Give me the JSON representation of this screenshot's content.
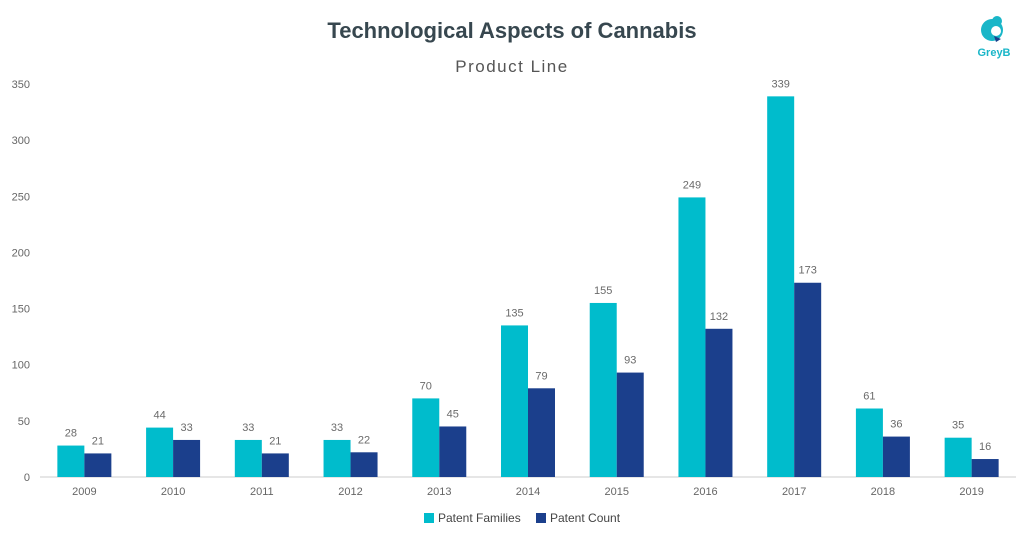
{
  "header": {
    "title": "Technological Aspects of Cannabis",
    "subtitle": "Product Line",
    "logo_text": "GreyB"
  },
  "colors": {
    "patent_families": "#00bccc",
    "patent_count": "#1b3f8c",
    "title": "#37474f",
    "logo": "#19b6c8"
  },
  "chart_data": {
    "type": "bar",
    "title": "Technological Aspects of Cannabis",
    "subtitle": "Product Line",
    "xlabel": "",
    "ylabel": "",
    "categories": [
      "2009",
      "2010",
      "2011",
      "2012",
      "2013",
      "2014",
      "2015",
      "2016",
      "2017",
      "2018",
      "2019"
    ],
    "series": [
      {
        "name": "Patent Families",
        "values": [
          28,
          44,
          33,
          33,
          70,
          135,
          155,
          249,
          339,
          61,
          35
        ]
      },
      {
        "name": "Patent Count",
        "values": [
          21,
          33,
          21,
          22,
          45,
          79,
          93,
          132,
          173,
          36,
          16
        ]
      }
    ],
    "ylim": [
      0,
      350
    ],
    "yticks": [
      0,
      50,
      100,
      150,
      200,
      250,
      300,
      350
    ],
    "grid": false,
    "data_labels": true,
    "legend_position": "bottom"
  }
}
